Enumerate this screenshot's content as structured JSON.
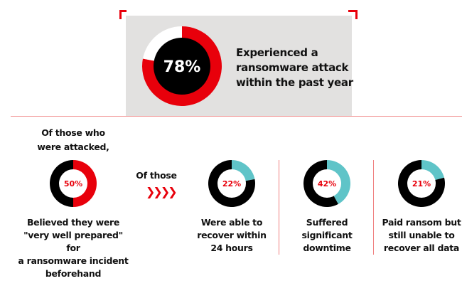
{
  "colors": {
    "red": "#e8000b",
    "black": "#000000",
    "teal": "#5fc4c8",
    "white": "#ffffff",
    "panel": "#e2e1e0"
  },
  "hero": {
    "value_label": "78%",
    "lines": [
      "Experienced a",
      "ransomware attack",
      "within the past year"
    ]
  },
  "intro": {
    "lines": [
      "Of those who",
      "were attacked,"
    ]
  },
  "of_those": "Of those",
  "chevrons_icon": "chevrons-right",
  "chevrons": "❯❯❯❯",
  "chart_data": [
    {
      "type": "pie",
      "variant": "donut",
      "title": "",
      "values": [
        78,
        22
      ],
      "labels": [
        "Experienced a ransomware attack within the past year",
        ""
      ],
      "colors": [
        "#e8000b",
        "#ffffff"
      ],
      "center_label": "78%"
    },
    {
      "type": "pie",
      "variant": "donut",
      "title": "",
      "values": [
        50,
        50
      ],
      "labels": [
        "Believed they were \"very well prepared\" for a ransomware incident beforehand",
        ""
      ],
      "colors": [
        "#e8000b",
        "#000000"
      ],
      "center_label": "50%"
    },
    {
      "type": "pie",
      "variant": "donut",
      "title": "",
      "values": [
        22,
        78
      ],
      "labels": [
        "Were able to recover within 24 hours",
        ""
      ],
      "colors": [
        "#5fc4c8",
        "#000000"
      ],
      "center_label": "22%"
    },
    {
      "type": "pie",
      "variant": "donut",
      "title": "",
      "values": [
        42,
        58
      ],
      "labels": [
        "Suffered significant downtime",
        ""
      ],
      "colors": [
        "#5fc4c8",
        "#000000"
      ],
      "center_label": "42%"
    },
    {
      "type": "pie",
      "variant": "donut",
      "title": "",
      "values": [
        21,
        79
      ],
      "labels": [
        "Paid ransom but still unable to recover all data",
        ""
      ],
      "colors": [
        "#5fc4c8",
        "#000000"
      ],
      "center_label": "21%"
    }
  ],
  "stats": [
    {
      "value_label": "50%",
      "lines": [
        "Believed they were",
        "\"very well prepared\" for",
        "a ransomware incident",
        "beforehand"
      ]
    },
    {
      "value_label": "22%",
      "lines": [
        "Were able to",
        "recover within",
        "24 hours"
      ]
    },
    {
      "value_label": "42%",
      "lines": [
        "Suffered",
        "significant",
        "downtime"
      ]
    },
    {
      "value_label": "21%",
      "lines": [
        "Paid ransom but",
        "still unable to",
        "recover all data"
      ]
    }
  ]
}
